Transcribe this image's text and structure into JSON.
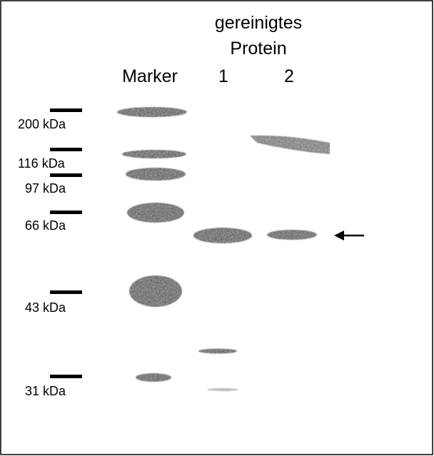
{
  "header": {
    "line1": "gereinigtes",
    "line2": "Protein"
  },
  "lanes": [
    "Marker",
    "1",
    "2"
  ],
  "markers": [
    "200 kDa",
    "116 kDa",
    "97 kDa",
    "66 kDa",
    "43 kDa",
    "31 kDa"
  ]
}
